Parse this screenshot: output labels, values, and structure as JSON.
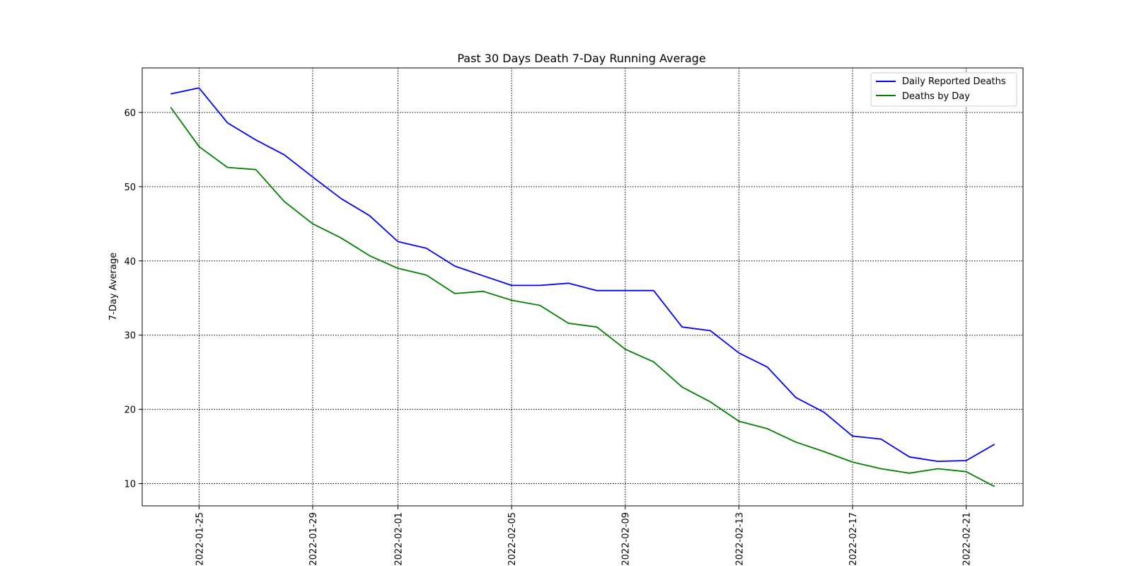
{
  "chart_data": {
    "type": "line",
    "title": "Past 30 Days Death 7-Day Running Average",
    "xlabel": "",
    "ylabel": "7-Day Average",
    "x": [
      "2022-01-24",
      "2022-01-25",
      "2022-01-26",
      "2022-01-27",
      "2022-01-28",
      "2022-01-29",
      "2022-01-30",
      "2022-01-31",
      "2022-02-01",
      "2022-02-02",
      "2022-02-03",
      "2022-02-04",
      "2022-02-05",
      "2022-02-06",
      "2022-02-07",
      "2022-02-08",
      "2022-02-09",
      "2022-02-10",
      "2022-02-11",
      "2022-02-12",
      "2022-02-13",
      "2022-02-14",
      "2022-02-15",
      "2022-02-16",
      "2022-02-17",
      "2022-02-18",
      "2022-02-19",
      "2022-02-20",
      "2022-02-21",
      "2022-02-22"
    ],
    "xticks": [
      "2022-01-25",
      "2022-01-29",
      "2022-02-01",
      "2022-02-05",
      "2022-02-09",
      "2022-02-13",
      "2022-02-17",
      "2022-02-21"
    ],
    "xlim": [
      "2022-01-23",
      "2022-02-23"
    ],
    "yticks": [
      10,
      20,
      30,
      40,
      50,
      60
    ],
    "ylim": [
      7,
      66
    ],
    "grid": true,
    "legend_position": "top-right",
    "series": [
      {
        "name": "Daily Reported Deaths",
        "color": "#0000ff",
        "values": [
          62.5,
          63.3,
          58.6,
          56.3,
          54.3,
          51.3,
          48.4,
          46.1,
          42.6,
          41.7,
          39.3,
          38.0,
          36.7,
          36.7,
          37.0,
          36.0,
          36.0,
          36.0,
          31.1,
          30.6,
          27.6,
          25.7,
          21.6,
          19.6,
          16.4,
          16.0,
          13.6,
          13.0,
          13.1,
          15.3
        ]
      },
      {
        "name": "Deaths by Day",
        "color": "#008000",
        "values": [
          60.7,
          55.4,
          52.6,
          52.3,
          48.0,
          45.0,
          43.1,
          40.7,
          39.0,
          38.1,
          35.6,
          35.9,
          34.7,
          34.0,
          31.6,
          31.1,
          28.1,
          26.4,
          23.0,
          21.0,
          18.4,
          17.4,
          15.6,
          14.3,
          12.9,
          12.0,
          11.4,
          12.0,
          11.6,
          9.6
        ]
      }
    ]
  }
}
